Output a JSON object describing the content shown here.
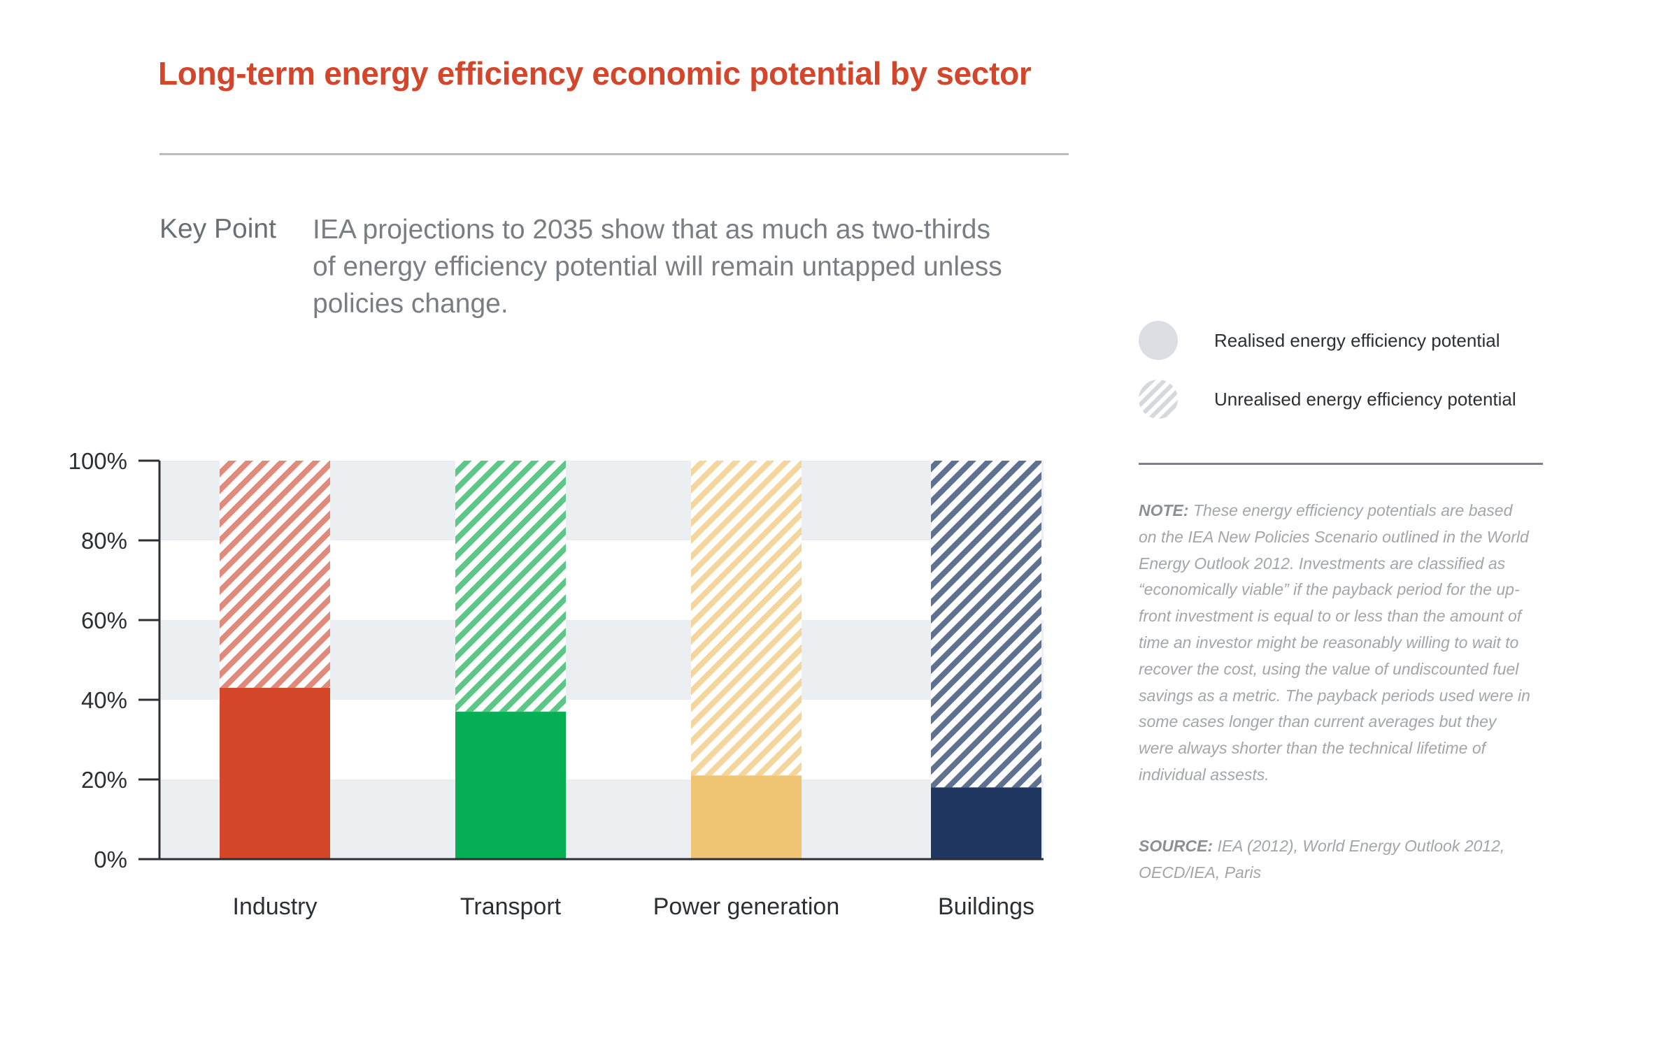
{
  "title": "Long-term energy efficiency economic potential by sector",
  "key_point": {
    "label": "Key Point",
    "text": "IEA projections to 2035 show that as much as two-thirds of energy efficiency potential will remain untapped unless policies change."
  },
  "legend": {
    "realised": "Realised energy efficiency potential",
    "unrealised": "Unrealised energy efficiency potential"
  },
  "note": {
    "label": "NOTE:",
    "text": "These energy efficiency potentials are based on the IEA New Policies Scenario outlined in the World Energy Outlook 2012. Investments are classified as “economically viable” if the payback period for the up-front investment is equal to or less than the amount of time an investor might be reasonably willing to wait to recover the cost, using the value of undiscounted fuel savings as a metric. The payback periods used were in some cases longer than current averages but they were always shorter than the technical lifetime of individual assests."
  },
  "source": {
    "label": "SOURCE:",
    "text": "IEA (2012), World Energy Outlook 2012, OECD/IEA, Paris"
  },
  "chart_data": {
    "type": "bar",
    "stacked": true,
    "categories": [
      "Industry",
      "Transport",
      "Power generation",
      "Buildings"
    ],
    "series": [
      {
        "name": "Realised energy efficiency potential",
        "values": [
          43,
          37,
          21,
          18
        ]
      },
      {
        "name": "Unrealised energy efficiency potential",
        "values": [
          57,
          63,
          79,
          82
        ]
      }
    ],
    "bar_colors": [
      "#d34628",
      "#06ae54",
      "#efc574",
      "#1f3761"
    ],
    "hatch_colors": [
      "#e08a7b",
      "#5cc786",
      "#f4d69c",
      "#5f7191"
    ],
    "yticks": [
      "0%",
      "20%",
      "40%",
      "60%",
      "80%",
      "100%"
    ],
    "ylim": [
      0,
      100
    ],
    "grid": "alternating bands",
    "legend_position": "right"
  }
}
